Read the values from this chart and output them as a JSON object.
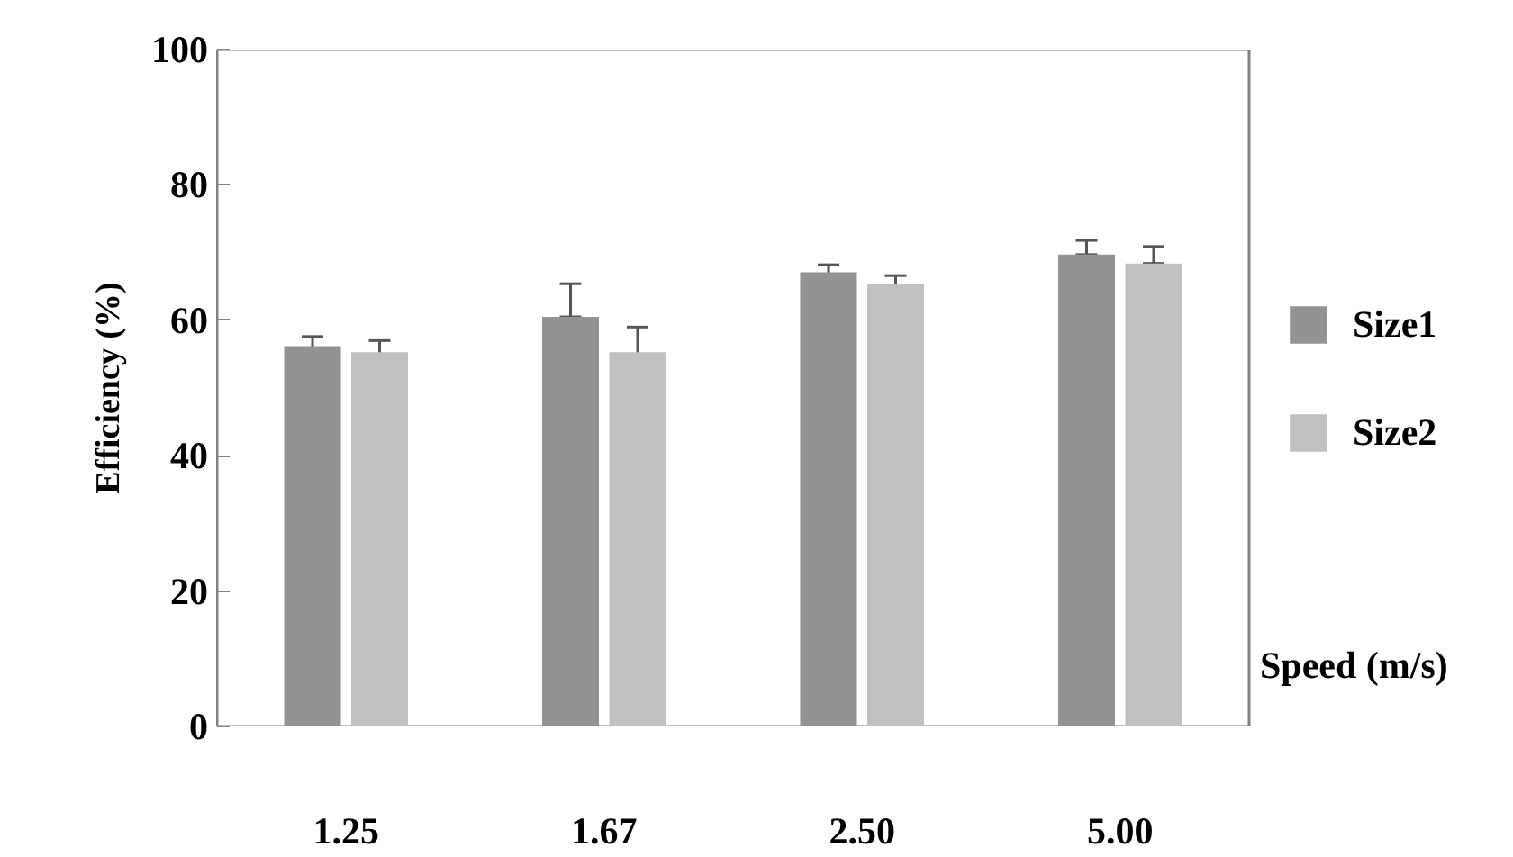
{
  "chart_data": {
    "type": "bar",
    "xlabel": "Speed (m/s)",
    "ylabel": "Efficiency (%)",
    "categories": [
      "1.25",
      "1.67",
      "2.50",
      "5.00"
    ],
    "series": [
      {
        "name": "Size1",
        "color": "#939393",
        "values": [
          56.2,
          60.5,
          67.1,
          69.7
        ],
        "errors": [
          1.4,
          [
            60.5,
            65.4
          ],
          1.1,
          [
            69.7,
            71.8
          ]
        ]
      },
      {
        "name": "Size2",
        "color": "#c0c0c0",
        "values": [
          55.3,
          55.3,
          65.3,
          68.4
        ],
        "errors": [
          1.7,
          [
            54.6,
            59.0
          ],
          1.3,
          [
            68.4,
            70.9
          ]
        ]
      }
    ],
    "ylim": [
      0,
      100
    ],
    "yticks": [
      0,
      20,
      40,
      60,
      80,
      100
    ],
    "grid": false,
    "legend": "right"
  }
}
